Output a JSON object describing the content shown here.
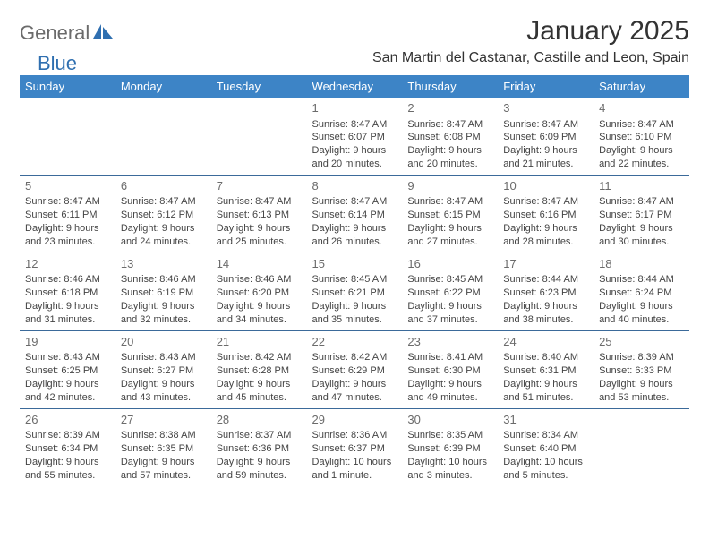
{
  "brand": {
    "part1": "General",
    "part2": "Blue"
  },
  "title": "January 2025",
  "location": "San Martin del Castanar, Castille and Leon, Spain",
  "colors": {
    "header_bg": "#3d84c6",
    "header_text": "#ffffff",
    "cell_border": "#3b6a9a",
    "brand_grey": "#6b6b6b",
    "brand_blue": "#2f6fb0"
  },
  "weekdays": [
    "Sunday",
    "Monday",
    "Tuesday",
    "Wednesday",
    "Thursday",
    "Friday",
    "Saturday"
  ],
  "weeks": [
    [
      {
        "n": "",
        "sr": "",
        "ss": "",
        "dl1": "",
        "dl2": ""
      },
      {
        "n": "",
        "sr": "",
        "ss": "",
        "dl1": "",
        "dl2": ""
      },
      {
        "n": "",
        "sr": "",
        "ss": "",
        "dl1": "",
        "dl2": ""
      },
      {
        "n": "1",
        "sr": "Sunrise: 8:47 AM",
        "ss": "Sunset: 6:07 PM",
        "dl1": "Daylight: 9 hours",
        "dl2": "and 20 minutes."
      },
      {
        "n": "2",
        "sr": "Sunrise: 8:47 AM",
        "ss": "Sunset: 6:08 PM",
        "dl1": "Daylight: 9 hours",
        "dl2": "and 20 minutes."
      },
      {
        "n": "3",
        "sr": "Sunrise: 8:47 AM",
        "ss": "Sunset: 6:09 PM",
        "dl1": "Daylight: 9 hours",
        "dl2": "and 21 minutes."
      },
      {
        "n": "4",
        "sr": "Sunrise: 8:47 AM",
        "ss": "Sunset: 6:10 PM",
        "dl1": "Daylight: 9 hours",
        "dl2": "and 22 minutes."
      }
    ],
    [
      {
        "n": "5",
        "sr": "Sunrise: 8:47 AM",
        "ss": "Sunset: 6:11 PM",
        "dl1": "Daylight: 9 hours",
        "dl2": "and 23 minutes."
      },
      {
        "n": "6",
        "sr": "Sunrise: 8:47 AM",
        "ss": "Sunset: 6:12 PM",
        "dl1": "Daylight: 9 hours",
        "dl2": "and 24 minutes."
      },
      {
        "n": "7",
        "sr": "Sunrise: 8:47 AM",
        "ss": "Sunset: 6:13 PM",
        "dl1": "Daylight: 9 hours",
        "dl2": "and 25 minutes."
      },
      {
        "n": "8",
        "sr": "Sunrise: 8:47 AM",
        "ss": "Sunset: 6:14 PM",
        "dl1": "Daylight: 9 hours",
        "dl2": "and 26 minutes."
      },
      {
        "n": "9",
        "sr": "Sunrise: 8:47 AM",
        "ss": "Sunset: 6:15 PM",
        "dl1": "Daylight: 9 hours",
        "dl2": "and 27 minutes."
      },
      {
        "n": "10",
        "sr": "Sunrise: 8:47 AM",
        "ss": "Sunset: 6:16 PM",
        "dl1": "Daylight: 9 hours",
        "dl2": "and 28 minutes."
      },
      {
        "n": "11",
        "sr": "Sunrise: 8:47 AM",
        "ss": "Sunset: 6:17 PM",
        "dl1": "Daylight: 9 hours",
        "dl2": "and 30 minutes."
      }
    ],
    [
      {
        "n": "12",
        "sr": "Sunrise: 8:46 AM",
        "ss": "Sunset: 6:18 PM",
        "dl1": "Daylight: 9 hours",
        "dl2": "and 31 minutes."
      },
      {
        "n": "13",
        "sr": "Sunrise: 8:46 AM",
        "ss": "Sunset: 6:19 PM",
        "dl1": "Daylight: 9 hours",
        "dl2": "and 32 minutes."
      },
      {
        "n": "14",
        "sr": "Sunrise: 8:46 AM",
        "ss": "Sunset: 6:20 PM",
        "dl1": "Daylight: 9 hours",
        "dl2": "and 34 minutes."
      },
      {
        "n": "15",
        "sr": "Sunrise: 8:45 AM",
        "ss": "Sunset: 6:21 PM",
        "dl1": "Daylight: 9 hours",
        "dl2": "and 35 minutes."
      },
      {
        "n": "16",
        "sr": "Sunrise: 8:45 AM",
        "ss": "Sunset: 6:22 PM",
        "dl1": "Daylight: 9 hours",
        "dl2": "and 37 minutes."
      },
      {
        "n": "17",
        "sr": "Sunrise: 8:44 AM",
        "ss": "Sunset: 6:23 PM",
        "dl1": "Daylight: 9 hours",
        "dl2": "and 38 minutes."
      },
      {
        "n": "18",
        "sr": "Sunrise: 8:44 AM",
        "ss": "Sunset: 6:24 PM",
        "dl1": "Daylight: 9 hours",
        "dl2": "and 40 minutes."
      }
    ],
    [
      {
        "n": "19",
        "sr": "Sunrise: 8:43 AM",
        "ss": "Sunset: 6:25 PM",
        "dl1": "Daylight: 9 hours",
        "dl2": "and 42 minutes."
      },
      {
        "n": "20",
        "sr": "Sunrise: 8:43 AM",
        "ss": "Sunset: 6:27 PM",
        "dl1": "Daylight: 9 hours",
        "dl2": "and 43 minutes."
      },
      {
        "n": "21",
        "sr": "Sunrise: 8:42 AM",
        "ss": "Sunset: 6:28 PM",
        "dl1": "Daylight: 9 hours",
        "dl2": "and 45 minutes."
      },
      {
        "n": "22",
        "sr": "Sunrise: 8:42 AM",
        "ss": "Sunset: 6:29 PM",
        "dl1": "Daylight: 9 hours",
        "dl2": "and 47 minutes."
      },
      {
        "n": "23",
        "sr": "Sunrise: 8:41 AM",
        "ss": "Sunset: 6:30 PM",
        "dl1": "Daylight: 9 hours",
        "dl2": "and 49 minutes."
      },
      {
        "n": "24",
        "sr": "Sunrise: 8:40 AM",
        "ss": "Sunset: 6:31 PM",
        "dl1": "Daylight: 9 hours",
        "dl2": "and 51 minutes."
      },
      {
        "n": "25",
        "sr": "Sunrise: 8:39 AM",
        "ss": "Sunset: 6:33 PM",
        "dl1": "Daylight: 9 hours",
        "dl2": "and 53 minutes."
      }
    ],
    [
      {
        "n": "26",
        "sr": "Sunrise: 8:39 AM",
        "ss": "Sunset: 6:34 PM",
        "dl1": "Daylight: 9 hours",
        "dl2": "and 55 minutes."
      },
      {
        "n": "27",
        "sr": "Sunrise: 8:38 AM",
        "ss": "Sunset: 6:35 PM",
        "dl1": "Daylight: 9 hours",
        "dl2": "and 57 minutes."
      },
      {
        "n": "28",
        "sr": "Sunrise: 8:37 AM",
        "ss": "Sunset: 6:36 PM",
        "dl1": "Daylight: 9 hours",
        "dl2": "and 59 minutes."
      },
      {
        "n": "29",
        "sr": "Sunrise: 8:36 AM",
        "ss": "Sunset: 6:37 PM",
        "dl1": "Daylight: 10 hours",
        "dl2": "and 1 minute."
      },
      {
        "n": "30",
        "sr": "Sunrise: 8:35 AM",
        "ss": "Sunset: 6:39 PM",
        "dl1": "Daylight: 10 hours",
        "dl2": "and 3 minutes."
      },
      {
        "n": "31",
        "sr": "Sunrise: 8:34 AM",
        "ss": "Sunset: 6:40 PM",
        "dl1": "Daylight: 10 hours",
        "dl2": "and 5 minutes."
      },
      {
        "n": "",
        "sr": "",
        "ss": "",
        "dl1": "",
        "dl2": ""
      }
    ]
  ]
}
